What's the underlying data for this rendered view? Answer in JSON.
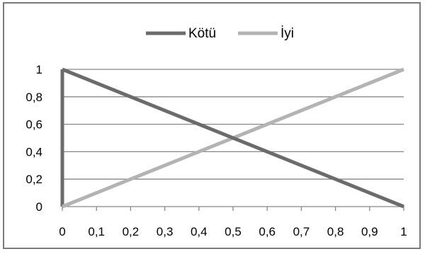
{
  "chart_data": {
    "type": "line",
    "title": "",
    "xlabel": "",
    "ylabel": "",
    "x": [
      0,
      1
    ],
    "series": [
      {
        "name": "Kötü",
        "values": [
          1,
          0
        ],
        "color": "#6b6b6b"
      },
      {
        "name": "İyi",
        "values": [
          0,
          1
        ],
        "color": "#b3b3b3"
      }
    ],
    "extra_segments": [
      {
        "series": "Kötü",
        "x": [
          0,
          0
        ],
        "y": [
          0,
          1
        ]
      }
    ],
    "xlim": [
      0,
      1
    ],
    "ylim": [
      0,
      1
    ],
    "x_ticks": [
      "0",
      "0,1",
      "0,2",
      "0,3",
      "0,4",
      "0,5",
      "0,6",
      "0,7",
      "0,8",
      "0,9",
      "1"
    ],
    "y_ticks": [
      "0",
      "0,2",
      "0,4",
      "0,6",
      "0,8",
      "1"
    ],
    "grid": "horizontal",
    "legend_position": "top"
  }
}
